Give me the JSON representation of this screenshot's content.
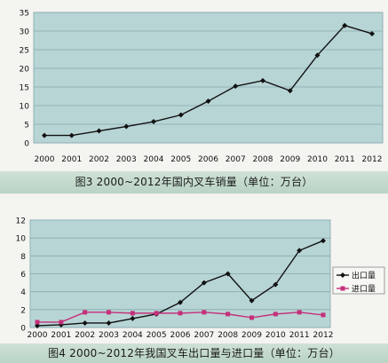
{
  "chart_data": [
    {
      "type": "line",
      "title": "图3   2000~2012年国内叉车销量（单位：万台）",
      "x": [
        "2000",
        "2001",
        "2002",
        "2003",
        "2004",
        "2005",
        "2006",
        "2007",
        "2008",
        "2009",
        "2010",
        "2011",
        "2012"
      ],
      "series": [
        {
          "values": [
            2.0,
            2.0,
            3.2,
            4.4,
            5.7,
            7.5,
            11.2,
            15.2,
            16.7,
            14.0,
            23.5,
            31.5,
            29.3
          ],
          "color": "#111111",
          "marker": "diamond"
        }
      ],
      "ylim": [
        0,
        35
      ],
      "yticks": [
        0,
        5,
        10,
        15,
        20,
        25,
        30,
        35
      ],
      "plot_background": "#b8d5d6",
      "grid": "horizontal",
      "xlabel": "",
      "ylabel": ""
    },
    {
      "type": "line",
      "title": "图4   2000~2012年我国叉车出口量与进口量（单位：万台）",
      "x": [
        "2000",
        "2001",
        "2002",
        "2003",
        "2004",
        "2005",
        "2006",
        "2007",
        "2008",
        "2009",
        "2010",
        "2011",
        "2012"
      ],
      "series": [
        {
          "name": "出口量",
          "values": [
            0.2,
            0.3,
            0.5,
            0.5,
            1.0,
            1.5,
            2.8,
            5.0,
            6.0,
            3.0,
            4.8,
            8.6,
            9.7
          ],
          "color": "#111111",
          "marker": "diamond"
        },
        {
          "name": "进口量",
          "values": [
            0.6,
            0.6,
            1.7,
            1.7,
            1.6,
            1.6,
            1.6,
            1.7,
            1.5,
            1.1,
            1.5,
            1.7,
            1.4
          ],
          "color": "#c4307a",
          "marker": "square"
        }
      ],
      "ylim": [
        0,
        12
      ],
      "yticks": [
        0,
        2,
        4,
        6,
        8,
        10,
        12
      ],
      "plot_background": "#b8d5d6",
      "grid": "horizontal",
      "legend": "right",
      "xlabel": "",
      "ylabel": ""
    }
  ]
}
